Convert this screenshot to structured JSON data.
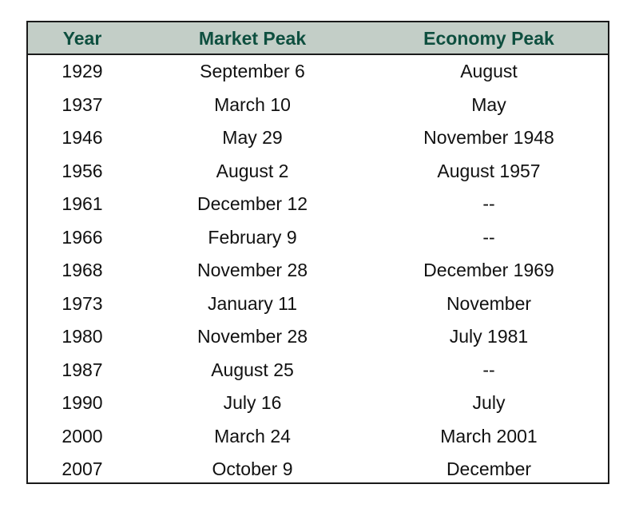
{
  "table": {
    "headers": [
      "Year",
      "Market Peak",
      "Economy Peak"
    ],
    "rows": [
      [
        "1929",
        "September 6",
        "August"
      ],
      [
        "1937",
        "March 10",
        "May"
      ],
      [
        "1946",
        "May 29",
        "November 1948"
      ],
      [
        "1956",
        "August 2",
        "August 1957"
      ],
      [
        "1961",
        "December 12",
        "--"
      ],
      [
        "1966",
        "February 9",
        "--"
      ],
      [
        "1968",
        "November 28",
        "December 1969"
      ],
      [
        "1973",
        "January 11",
        "November"
      ],
      [
        "1980",
        "November 28",
        "July 1981"
      ],
      [
        "1987",
        "August 25",
        "--"
      ],
      [
        "1990",
        "July 16",
        "July"
      ],
      [
        "2000",
        "March 24",
        "March 2001"
      ],
      [
        "2007",
        "October 9",
        "December"
      ]
    ]
  },
  "colors": {
    "header_background": "#c3cec7",
    "header_text": "#0e4f3f",
    "border": "#1a1a1a"
  }
}
